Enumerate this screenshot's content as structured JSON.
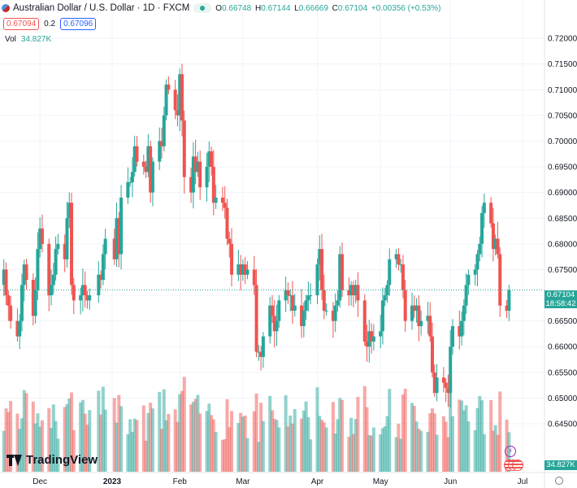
{
  "header": {
    "title": "Australian Dollar / U.S. Dollar · 1D · FXCM",
    "ohlc": [
      {
        "k": "O",
        "v": "0.66748"
      },
      {
        "k": "H",
        "v": "0.67144"
      },
      {
        "k": "L",
        "v": "0.66669"
      },
      {
        "k": "C",
        "v": "0.67104"
      }
    ],
    "change": "+0.00356 (+0.53%)",
    "bid": "0.67094",
    "spread": "0.2",
    "ask": "0.67096",
    "vol_label": "Vol",
    "vol_value": "34.827K"
  },
  "branding": {
    "logo_text": "TradingView"
  },
  "last_price": {
    "price": "0.67104",
    "countdown": "18:58:42"
  },
  "volume_tag": "34.827K",
  "chart_data": {
    "type": "candlestick",
    "symbol": "AUDUSD",
    "interval": "1D",
    "y_ticks": [
      "0.72000",
      "0.71500",
      "0.71000",
      "0.70500",
      "0.70000",
      "0.69500",
      "0.69000",
      "0.68500",
      "0.68000",
      "0.67500",
      "0.67000",
      "0.66500",
      "0.66000",
      "0.65500",
      "0.65000",
      "0.64500"
    ],
    "x_ticks": [
      {
        "label": "Dec",
        "date": "2022-12-01"
      },
      {
        "label": "2023",
        "date": "2023-01-02"
      },
      {
        "label": "Feb",
        "date": "2023-02-01"
      },
      {
        "label": "Mar",
        "date": "2023-03-01"
      },
      {
        "label": "Apr",
        "date": "2023-04-03"
      },
      {
        "label": "May",
        "date": "2023-05-01"
      },
      {
        "label": "Jun",
        "date": "2023-06-01"
      },
      {
        "label": "Jul",
        "date": "2023-07-03"
      }
    ],
    "price_range": [
      0.642,
      0.7227
    ],
    "current_price": 0.67104,
    "bullish_color": "#26a69a",
    "bearish_color": "#ef5350",
    "grid": true,
    "ohlc_anchors": [
      [
        "2022-11-14",
        0.672
      ],
      [
        "2022-11-15",
        0.675
      ],
      [
        "2022-11-16",
        0.67
      ],
      [
        "2022-11-17",
        0.668
      ],
      [
        "2022-11-18",
        0.665
      ],
      [
        "2022-11-21",
        0.662
      ],
      [
        "2022-11-22",
        0.665
      ],
      [
        "2022-11-23",
        0.672
      ],
      [
        "2022-11-24",
        0.676
      ],
      [
        "2022-11-25",
        0.673
      ],
      [
        "2022-11-28",
        0.666
      ],
      [
        "2022-11-29",
        0.671
      ],
      [
        "2022-11-30",
        0.679
      ],
      [
        "2022-12-01",
        0.683
      ],
      [
        "2022-12-02",
        0.68
      ],
      [
        "2022-12-05",
        0.67
      ],
      [
        "2022-12-06",
        0.672
      ],
      [
        "2022-12-07",
        0.674
      ],
      [
        "2022-12-08",
        0.679
      ],
      [
        "2022-12-09",
        0.68
      ],
      [
        "2022-12-12",
        0.677
      ],
      [
        "2022-12-13",
        0.685
      ],
      [
        "2022-12-14",
        0.688
      ],
      [
        "2022-12-15",
        0.672
      ],
      [
        "2022-12-16",
        0.669
      ],
      [
        "2022-12-19",
        0.67
      ],
      [
        "2022-12-20",
        0.672
      ],
      [
        "2022-12-21",
        0.67
      ],
      [
        "2022-12-22",
        0.669
      ],
      [
        "2022-12-23",
        0.67
      ],
      [
        "2022-12-27",
        0.674
      ],
      [
        "2022-12-28",
        0.673
      ],
      [
        "2022-12-29",
        0.678
      ],
      [
        "2022-12-30",
        0.681
      ],
      [
        "2023-01-03",
        0.677
      ],
      [
        "2023-01-04",
        0.685
      ],
      [
        "2023-01-05",
        0.678
      ],
      [
        "2023-01-06",
        0.689
      ],
      [
        "2023-01-09",
        0.692
      ],
      [
        "2023-01-10",
        0.692
      ],
      [
        "2023-01-11",
        0.694
      ],
      [
        "2023-01-12",
        0.699
      ],
      [
        "2023-01-13",
        0.696
      ],
      [
        "2023-01-16",
        0.695
      ],
      [
        "2023-01-17",
        0.694
      ],
      [
        "2023-01-18",
        0.699
      ],
      [
        "2023-01-19",
        0.69
      ],
      [
        "2023-01-20",
        0.696
      ],
      [
        "2023-01-23",
        0.7
      ],
      [
        "2023-01-24",
        0.699
      ],
      [
        "2023-01-25",
        0.705
      ],
      [
        "2023-01-26",
        0.711
      ],
      [
        "2023-01-27",
        0.71
      ],
      [
        "2023-01-30",
        0.706
      ],
      [
        "2023-01-31",
        0.705
      ],
      [
        "2023-02-01",
        0.713
      ],
      [
        "2023-02-02",
        0.704
      ],
      [
        "2023-02-03",
        0.693
      ],
      [
        "2023-02-06",
        0.69
      ],
      [
        "2023-02-07",
        0.697
      ],
      [
        "2023-02-08",
        0.694
      ],
      [
        "2023-02-09",
        0.696
      ],
      [
        "2023-02-10",
        0.691
      ],
      [
        "2023-02-13",
        0.695
      ],
      [
        "2023-02-14",
        0.698
      ],
      [
        "2023-02-15",
        0.695
      ],
      [
        "2023-02-16",
        0.688
      ],
      [
        "2023-02-17",
        0.689
      ],
      [
        "2023-02-20",
        0.688
      ],
      [
        "2023-02-21",
        0.687
      ],
      [
        "2023-02-22",
        0.681
      ],
      [
        "2023-02-23",
        0.68
      ],
      [
        "2023-02-24",
        0.674
      ],
      [
        "2023-02-27",
        0.676
      ],
      [
        "2023-02-28",
        0.674
      ],
      [
        "2023-03-01",
        0.676
      ],
      [
        "2023-03-02",
        0.674
      ],
      [
        "2023-03-03",
        0.675
      ],
      [
        "2023-03-06",
        0.672
      ],
      [
        "2023-03-07",
        0.659
      ],
      [
        "2023-03-08",
        0.659
      ],
      [
        "2023-03-09",
        0.658
      ],
      [
        "2023-03-10",
        0.662
      ],
      [
        "2023-03-13",
        0.668
      ],
      [
        "2023-03-14",
        0.666
      ],
      [
        "2023-03-15",
        0.663
      ],
      [
        "2023-03-16",
        0.665
      ],
      [
        "2023-03-17",
        0.669
      ],
      [
        "2023-03-20",
        0.671
      ],
      [
        "2023-03-21",
        0.67
      ],
      [
        "2023-03-22",
        0.67
      ],
      [
        "2023-03-23",
        0.667
      ],
      [
        "2023-03-24",
        0.668
      ],
      [
        "2023-03-27",
        0.664
      ],
      [
        "2023-03-28",
        0.667
      ],
      [
        "2023-03-29",
        0.669
      ],
      [
        "2023-03-30",
        0.67
      ],
      [
        "2023-03-31",
        0.67
      ],
      [
        "2023-04-03",
        0.676
      ],
      [
        "2023-04-04",
        0.679
      ],
      [
        "2023-04-05",
        0.671
      ],
      [
        "2023-04-06",
        0.667
      ],
      [
        "2023-04-07",
        0.667
      ],
      [
        "2023-04-10",
        0.665
      ],
      [
        "2023-04-11",
        0.668
      ],
      [
        "2023-04-12",
        0.669
      ],
      [
        "2023-04-13",
        0.678
      ],
      [
        "2023-04-14",
        0.671
      ],
      [
        "2023-04-17",
        0.67
      ],
      [
        "2023-04-18",
        0.672
      ],
      [
        "2023-04-19",
        0.67
      ],
      [
        "2023-04-20",
        0.672
      ],
      [
        "2023-04-21",
        0.669
      ],
      [
        "2023-04-24",
        0.661
      ],
      [
        "2023-04-25",
        0.66
      ],
      [
        "2023-04-26",
        0.663
      ],
      [
        "2023-04-27",
        0.661
      ],
      [
        "2023-04-28",
        0.662
      ],
      [
        "2023-05-01",
        0.663
      ],
      [
        "2023-05-02",
        0.669
      ],
      [
        "2023-05-03",
        0.67
      ],
      [
        "2023-05-04",
        0.672
      ],
      [
        "2023-05-05",
        0.677
      ],
      [
        "2023-05-08",
        0.678
      ],
      [
        "2023-05-09",
        0.676
      ],
      [
        "2023-05-10",
        0.676
      ],
      [
        "2023-05-11",
        0.671
      ],
      [
        "2023-05-12",
        0.665
      ],
      [
        "2023-05-15",
        0.668
      ],
      [
        "2023-05-16",
        0.667
      ],
      [
        "2023-05-17",
        0.668
      ],
      [
        "2023-05-18",
        0.664
      ],
      [
        "2023-05-19",
        0.665
      ],
      [
        "2023-05-22",
        0.666
      ],
      [
        "2023-05-23",
        0.662
      ],
      [
        "2023-05-24",
        0.655
      ],
      [
        "2023-05-25",
        0.651
      ],
      [
        "2023-05-26",
        0.654
      ],
      [
        "2023-05-29",
        0.653
      ],
      [
        "2023-05-30",
        0.652
      ],
      [
        "2023-05-31",
        0.651
      ],
      [
        "2023-06-01",
        0.66
      ],
      [
        "2023-06-02",
        0.664
      ],
      [
        "2023-06-05",
        0.662
      ],
      [
        "2023-06-06",
        0.665
      ],
      [
        "2023-06-07",
        0.668
      ],
      [
        "2023-06-08",
        0.672
      ],
      [
        "2023-06-09",
        0.674
      ],
      [
        "2023-06-12",
        0.675
      ],
      [
        "2023-06-13",
        0.678
      ],
      [
        "2023-06-14",
        0.68
      ],
      [
        "2023-06-15",
        0.686
      ],
      [
        "2023-06-16",
        0.688
      ],
      [
        "2023-06-19",
        0.684
      ],
      [
        "2023-06-20",
        0.679
      ],
      [
        "2023-06-21",
        0.681
      ],
      [
        "2023-06-22",
        0.678
      ],
      [
        "2023-06-23",
        0.668
      ],
      [
        "2023-06-26",
        0.667
      ],
      [
        "2023-06-27",
        0.671
      ]
    ]
  }
}
